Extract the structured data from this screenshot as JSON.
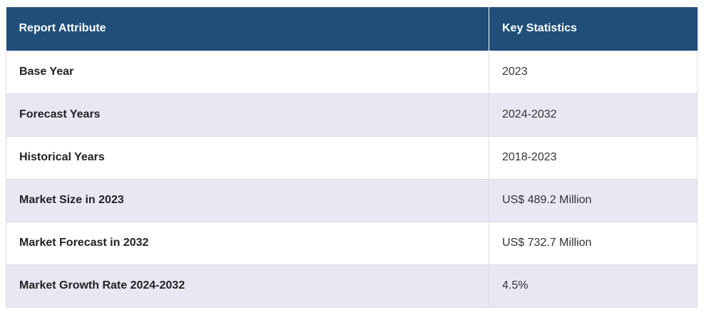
{
  "header": {
    "col1": "Report Attribute",
    "col2": "Key Statistics"
  },
  "rows": [
    {
      "attribute": "Base Year",
      "value": "2023"
    },
    {
      "attribute": "Forecast Years",
      "value": "2024-2032"
    },
    {
      "attribute": "Historical Years",
      "value": "2018-2023"
    },
    {
      "attribute": "Market Size in 2023",
      "value": "US$ 489.2 Million"
    },
    {
      "attribute": "Market Forecast in 2032",
      "value": "US$ 732.7 Million"
    },
    {
      "attribute": "Market Growth Rate 2024-2032",
      "value": "4.5%"
    }
  ],
  "colors": {
    "header_bg": "#1f4e79",
    "row_alt_bg": "#e7e8f4"
  }
}
